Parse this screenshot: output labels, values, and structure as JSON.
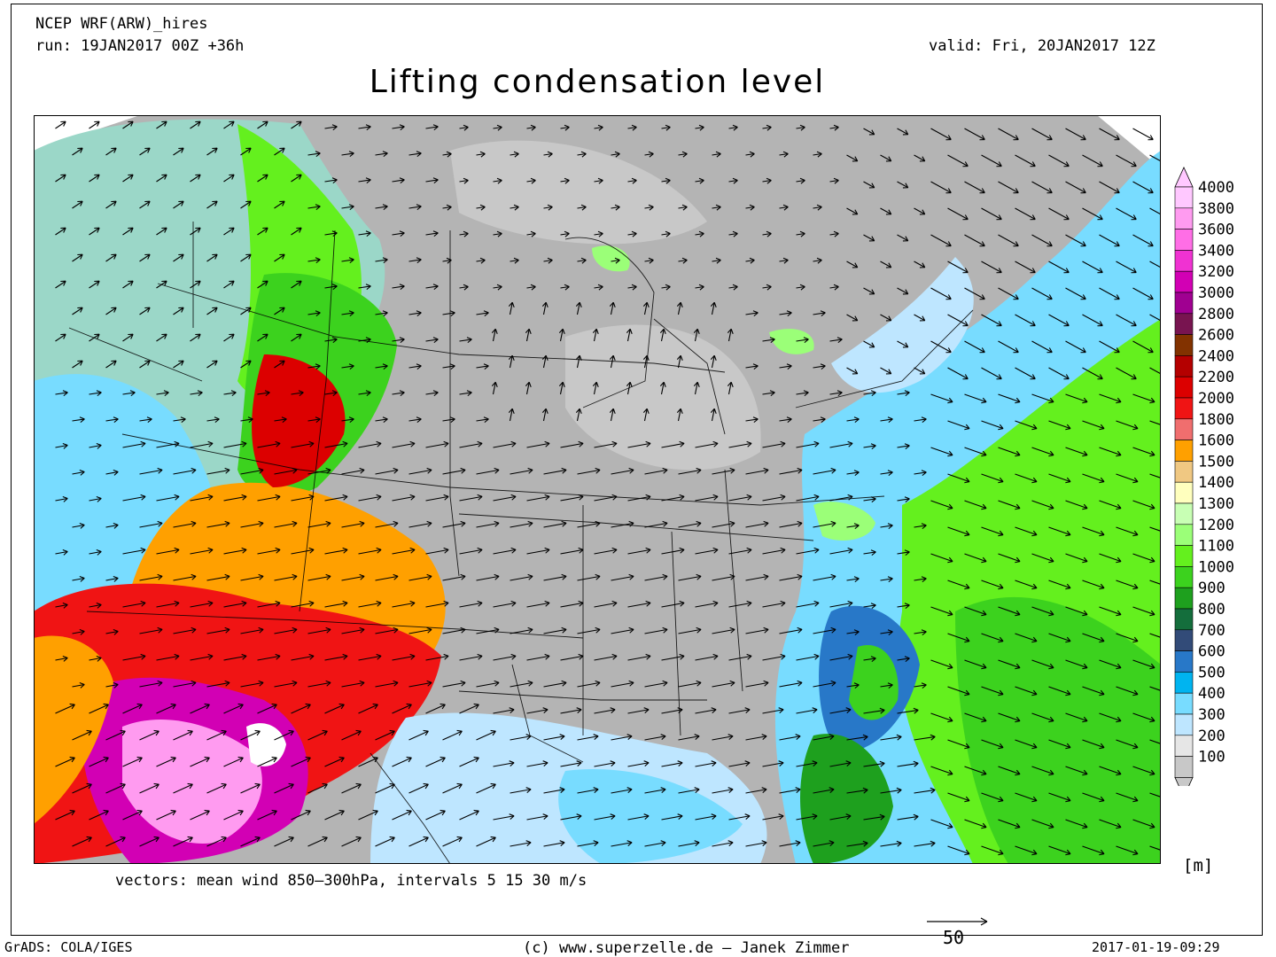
{
  "header": {
    "model": "NCEP WRF(ARW)_hires",
    "run": "run: 19JAN2017 00Z +36h",
    "valid": "valid: Fri, 20JAN2017 12Z",
    "title": "Lifting condensation level"
  },
  "legend": {
    "levels": [
      "4000",
      "3800",
      "3600",
      "3400",
      "3200",
      "3000",
      "2800",
      "2600",
      "2400",
      "2200",
      "2000",
      "1800",
      "1600",
      "1500",
      "1400",
      "1300",
      "1200",
      "1100",
      "1000",
      "900",
      "800",
      "700",
      "600",
      "500",
      "400",
      "300",
      "200",
      "100"
    ],
    "colors": [
      "#ffc8ff",
      "#ff9bf0",
      "#ff6ee6",
      "#f032d2",
      "#d200b4",
      "#a00091",
      "#781450",
      "#823200",
      "#b40000",
      "#dc0000",
      "#f01414",
      "#f06e6e",
      "#ffa000",
      "#f0c882",
      "#ffffbe",
      "#c8ffb4",
      "#9bff78",
      "#64f01e",
      "#3cd21e",
      "#1ea01e",
      "#146e3c",
      "#324b78",
      "#2878c8",
      "#00b4f0",
      "#78dcff",
      "#bee6ff",
      "#e6e6e6",
      "#c8c8c8"
    ],
    "unit": "[m]"
  },
  "footer": {
    "vectors": "vectors: mean wind 850–300hPa, intervals 5 15 30 m/s",
    "scale_value": "50",
    "grads": "GrADS: COLA/IGES",
    "copyright": "(c) www.superzelle.de – Janek Zimmer",
    "timestamp": "2017-01-19-09:29"
  }
}
